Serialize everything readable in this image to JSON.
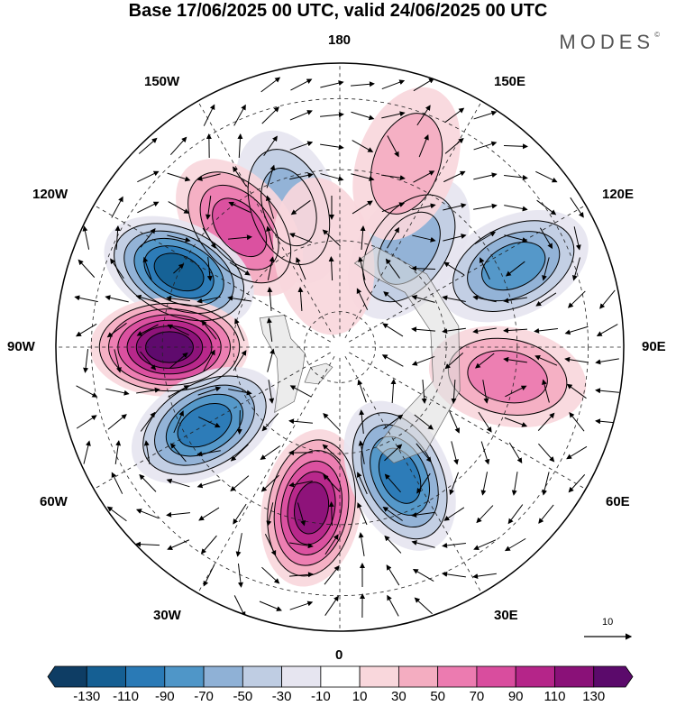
{
  "title": "Base 17/06/2025 00 UTC, valid 24/06/2025 00 UTC",
  "brand": "MODES",
  "brand_mark": "©",
  "longitude_labels": {
    "top": "180",
    "bottom": "0",
    "left": "90W",
    "right": "90E",
    "upper_left_1": "150W",
    "upper_left_2": "120W",
    "upper_right_1": "150E",
    "upper_right_2": "120E",
    "lower_left_1": "60W",
    "lower_left_2": "30W",
    "lower_right_1": "60E",
    "lower_right_2": "30E"
  },
  "reference_vector_label": "10",
  "colorbar": {
    "labels": [
      "-130",
      "-110",
      "-90",
      "-70",
      "-50",
      "-30",
      "-10",
      "10",
      "30",
      "50",
      "70",
      "90",
      "110",
      "130"
    ],
    "colors": [
      "#0e3d64",
      "#155f93",
      "#2a7ab6",
      "#4f96c8",
      "#8fb1d6",
      "#bfcde3",
      "#e6e5f0",
      "#ffffff",
      "#f9d7dc",
      "#f4adc1",
      "#ec7bb0",
      "#d94d9e",
      "#b52589",
      "#8a1178",
      "#5b0a6b"
    ]
  },
  "anomaly_centers": [
    {
      "lon_deg": -160,
      "colat_deg": 42,
      "value": -60
    },
    {
      "lon_deg": -140,
      "colat_deg": 44,
      "value": 80
    },
    {
      "lon_deg": -115,
      "colat_deg": 50,
      "value": -110
    },
    {
      "lon_deg": -90,
      "colat_deg": 48,
      "value": 130
    },
    {
      "lon_deg": -60,
      "colat_deg": 44,
      "value": -100
    },
    {
      "lon_deg": -10,
      "colat_deg": 46,
      "value": 110
    },
    {
      "lon_deg": 25,
      "colat_deg": 40,
      "value": -90
    },
    {
      "lon_deg": 80,
      "colat_deg": 48,
      "value": 60
    },
    {
      "lon_deg": 115,
      "colat_deg": 54,
      "value": -80
    },
    {
      "lon_deg": 145,
      "colat_deg": 34,
      "value": -50
    },
    {
      "lon_deg": 160,
      "colat_deg": 55,
      "value": 30
    },
    {
      "lon_deg": -170,
      "colat_deg": 26,
      "value": 20
    }
  ]
}
